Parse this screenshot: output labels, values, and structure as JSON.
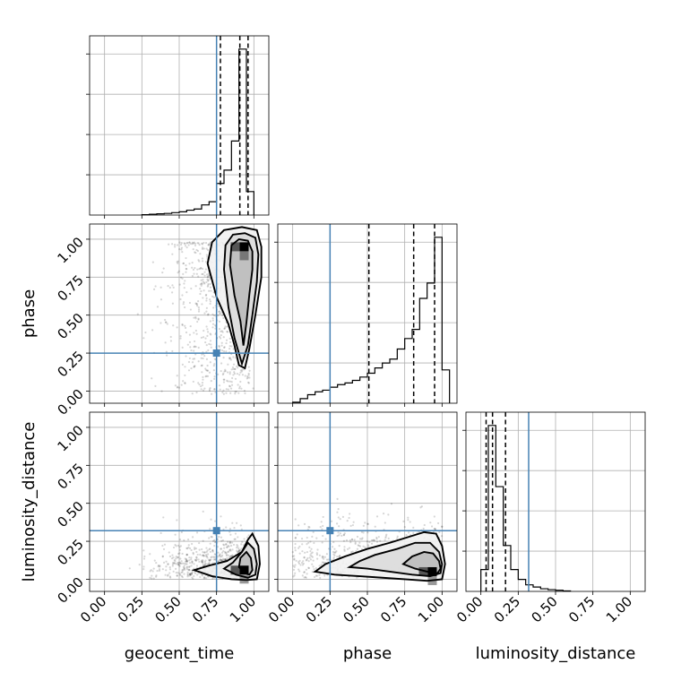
{
  "chart_data": {
    "type": "corner",
    "parameters": [
      "geocent_time",
      "phase",
      "luminosity_distance"
    ],
    "truths": {
      "geocent_time": 0.75,
      "phase": 0.25,
      "luminosity_distance": 0.32
    },
    "tick_labels": [
      "0.00",
      "0.25",
      "0.50",
      "0.75",
      "1.00"
    ],
    "colors": {
      "truth": "#4682b4",
      "lines": "#000000",
      "grid": "#b0b0b0"
    },
    "grid": true,
    "diagonal": [
      {
        "param": "geocent_time",
        "xlim": [
          -0.1,
          1.1
        ],
        "bin_edges": [
          0.25,
          0.3,
          0.35,
          0.4,
          0.45,
          0.5,
          0.55,
          0.6,
          0.65,
          0.7,
          0.75,
          0.8,
          0.85,
          0.9,
          0.95,
          1.0
        ],
        "counts": [
          1,
          2,
          3,
          4,
          6,
          8,
          12,
          15,
          25,
          33,
          78,
          111,
          183,
          410,
          58
        ],
        "quantiles": [
          0.776,
          0.906,
          0.961
        ]
      },
      {
        "param": "phase",
        "xlim": [
          -0.1,
          1.1
        ],
        "bin_edges": [
          0.0,
          0.05,
          0.1,
          0.15,
          0.2,
          0.25,
          0.3,
          0.35,
          0.4,
          0.45,
          0.5,
          0.55,
          0.6,
          0.65,
          0.7,
          0.75,
          0.8,
          0.85,
          0.9,
          0.95,
          1.0,
          1.05
        ],
        "counts": [
          3,
          14,
          26,
          35,
          40,
          49,
          57,
          62,
          70,
          80,
          92,
          108,
          123,
          135,
          166,
          198,
          226,
          321,
          368,
          508,
          102
        ],
        "quantiles": [
          0.51,
          0.81,
          0.95
        ]
      },
      {
        "param": "luminosity_distance",
        "xlim": [
          -0.1,
          1.1
        ],
        "bin_edges": [
          0.0,
          0.05,
          0.1,
          0.15,
          0.2,
          0.25,
          0.3,
          0.35,
          0.4,
          0.45,
          0.5,
          0.55,
          0.6
        ],
        "counts": [
          100,
          760,
          480,
          210,
          100,
          55,
          30,
          20,
          12,
          8,
          5,
          2
        ],
        "quantiles": [
          0.035,
          0.078,
          0.165
        ]
      }
    ],
    "off_diagonal": [
      {
        "x": "geocent_time",
        "y": "phase",
        "xlim": [
          -0.1,
          1.1
        ],
        "ylim": [
          -0.08,
          1.1
        ],
        "contours": [
          [
            [
              0.87,
              0.63
            ],
            [
              0.91,
              0.46
            ],
            [
              0.93,
              0.3
            ],
            [
              0.95,
              0.45
            ],
            [
              0.97,
              0.64
            ],
            [
              0.99,
              0.8
            ],
            [
              0.99,
              0.92
            ],
            [
              0.96,
              0.99
            ],
            [
              0.9,
              1.0
            ],
            [
              0.85,
              0.96
            ],
            [
              0.84,
              0.83
            ],
            [
              0.86,
              0.7
            ]
          ],
          [
            [
              0.8,
              0.8
            ],
            [
              0.83,
              0.55
            ],
            [
              0.87,
              0.35
            ],
            [
              0.92,
              0.18
            ],
            [
              0.96,
              0.3
            ],
            [
              0.99,
              0.5
            ],
            [
              1.02,
              0.72
            ],
            [
              1.03,
              0.9
            ],
            [
              1.01,
              1.01
            ],
            [
              0.94,
              1.04
            ],
            [
              0.86,
              1.03
            ],
            [
              0.81,
              0.96
            ]
          ],
          [
            [
              0.72,
              0.98
            ],
            [
              0.69,
              0.84
            ],
            [
              0.75,
              0.62
            ],
            [
              0.83,
              0.44
            ],
            [
              0.87,
              0.3
            ],
            [
              0.9,
              0.17
            ],
            [
              0.94,
              0.15
            ],
            [
              0.97,
              0.28
            ],
            [
              1.01,
              0.5
            ],
            [
              1.05,
              0.75
            ],
            [
              1.05,
              0.95
            ],
            [
              1.02,
              1.06
            ],
            [
              0.92,
              1.08
            ],
            [
              0.8,
              1.06
            ]
          ]
        ],
        "density_peak": [
          0.935,
          0.95
        ]
      },
      {
        "x": "geocent_time",
        "y": "luminosity_distance",
        "xlim": [
          -0.1,
          1.1
        ],
        "ylim": [
          -0.08,
          1.1
        ],
        "contours": [
          [
            [
              0.9,
              0.08
            ],
            [
              0.94,
              0.04
            ],
            [
              0.97,
              0.03
            ],
            [
              0.99,
              0.06
            ],
            [
              0.98,
              0.14
            ],
            [
              0.95,
              0.18
            ],
            [
              0.91,
              0.14
            ]
          ],
          [
            [
              0.8,
              0.07
            ],
            [
              0.88,
              0.03
            ],
            [
              0.96,
              0.01
            ],
            [
              1.01,
              0.03
            ],
            [
              1.02,
              0.1
            ],
            [
              1.0,
              0.2
            ],
            [
              0.96,
              0.24
            ],
            [
              0.92,
              0.18
            ],
            [
              0.86,
              0.11
            ]
          ],
          [
            [
              0.6,
              0.06
            ],
            [
              0.72,
              0.02
            ],
            [
              0.85,
              0.0
            ],
            [
              0.95,
              -0.005
            ],
            [
              1.02,
              0.0
            ],
            [
              1.04,
              0.1
            ],
            [
              1.03,
              0.22
            ],
            [
              0.99,
              0.3
            ],
            [
              0.96,
              0.26
            ],
            [
              0.92,
              0.18
            ],
            [
              0.82,
              0.12
            ],
            [
              0.7,
              0.09
            ]
          ]
        ],
        "density_peak": [
          0.935,
          0.06
        ]
      },
      {
        "x": "phase",
        "y": "luminosity_distance",
        "xlim": [
          -0.1,
          1.1
        ],
        "ylim": [
          -0.08,
          1.1
        ],
        "contours": [
          [
            [
              0.74,
              0.1
            ],
            [
              0.82,
              0.07
            ],
            [
              0.9,
              0.05
            ],
            [
              0.97,
              0.04
            ],
            [
              0.99,
              0.07
            ],
            [
              0.98,
              0.12
            ],
            [
              0.94,
              0.17
            ],
            [
              0.88,
              0.18
            ],
            [
              0.8,
              0.15
            ]
          ],
          [
            [
              0.38,
              0.08
            ],
            [
              0.5,
              0.07
            ],
            [
              0.65,
              0.05
            ],
            [
              0.8,
              0.03
            ],
            [
              0.92,
              0.02
            ],
            [
              0.99,
              0.04
            ],
            [
              1.0,
              0.1
            ],
            [
              0.98,
              0.18
            ],
            [
              0.92,
              0.24
            ],
            [
              0.82,
              0.24
            ],
            [
              0.7,
              0.2
            ],
            [
              0.55,
              0.16
            ],
            [
              0.45,
              0.12
            ]
          ],
          [
            [
              0.15,
              0.05
            ],
            [
              0.28,
              0.03
            ],
            [
              0.45,
              0.02
            ],
            [
              0.6,
              0.01
            ],
            [
              0.75,
              0.0
            ],
            [
              0.9,
              -0.01
            ],
            [
              1.0,
              0.0
            ],
            [
              1.02,
              0.1
            ],
            [
              1.0,
              0.22
            ],
            [
              0.96,
              0.3
            ],
            [
              0.88,
              0.31
            ],
            [
              0.78,
              0.28
            ],
            [
              0.65,
              0.24
            ],
            [
              0.5,
              0.2
            ],
            [
              0.35,
              0.15
            ],
            [
              0.22,
              0.1
            ]
          ]
        ],
        "density_peak": [
          0.935,
          0.05
        ]
      }
    ]
  }
}
